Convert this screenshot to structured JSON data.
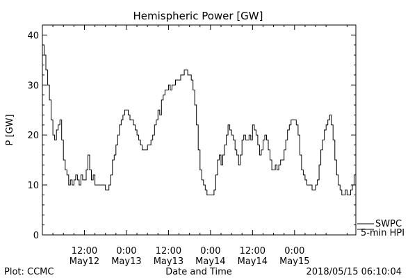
{
  "chart_data": {
    "type": "line",
    "title": "Hemispheric Power [GW]",
    "xlabel": "Date and Time",
    "ylabel": "P [GW]",
    "ylim": [
      0,
      42
    ],
    "xlim": [
      0,
      89.5
    ],
    "x_unit": "hours since 2018-05-11 00:00",
    "yticks": [
      0,
      10,
      20,
      30,
      40
    ],
    "xticks": [
      {
        "x": 12,
        "time": "12:00",
        "date": "May12"
      },
      {
        "x": 24,
        "time": "0:00",
        "date": "May13"
      },
      {
        "x": 36,
        "time": "12:00",
        "date": "May13"
      },
      {
        "x": 48,
        "time": "0:00",
        "date": "May14"
      },
      {
        "x": 60,
        "time": "12:00",
        "date": "May14"
      },
      {
        "x": 72,
        "time": "0:00",
        "date": "May15"
      }
    ],
    "legend": {
      "line1": "SWPC",
      "line2": "5-min HPI",
      "position": "bottom-right"
    },
    "footer_left": "Plot: CCMC",
    "footer_right": "2018/05/15 06:10:04",
    "series": [
      {
        "color": "#000000",
        "points": [
          [
            0.0,
            38
          ],
          [
            0.5,
            36
          ],
          [
            1.0,
            33
          ],
          [
            1.5,
            30
          ],
          [
            2.0,
            27
          ],
          [
            2.5,
            23
          ],
          [
            3.0,
            20
          ],
          [
            3.5,
            19
          ],
          [
            4.0,
            21
          ],
          [
            4.5,
            22
          ],
          [
            5.0,
            23
          ],
          [
            5.5,
            19
          ],
          [
            6.0,
            15
          ],
          [
            6.5,
            13
          ],
          [
            7.0,
            12
          ],
          [
            7.5,
            10
          ],
          [
            8.0,
            11
          ],
          [
            8.5,
            10
          ],
          [
            9.0,
            11
          ],
          [
            9.5,
            12
          ],
          [
            10.0,
            11
          ],
          [
            10.5,
            10
          ],
          [
            11.0,
            12
          ],
          [
            11.5,
            11
          ],
          [
            12.0,
            11
          ],
          [
            12.5,
            13
          ],
          [
            13.0,
            16
          ],
          [
            13.5,
            13
          ],
          [
            14.0,
            11
          ],
          [
            14.5,
            12
          ],
          [
            15.0,
            10
          ],
          [
            15.5,
            10
          ],
          [
            16.0,
            10
          ],
          [
            16.5,
            10
          ],
          [
            17.0,
            10
          ],
          [
            17.5,
            10
          ],
          [
            18.0,
            9
          ],
          [
            18.5,
            9
          ],
          [
            19.0,
            10
          ],
          [
            19.5,
            12
          ],
          [
            20.0,
            15
          ],
          [
            20.5,
            16
          ],
          [
            21.0,
            18
          ],
          [
            21.5,
            20
          ],
          [
            22.0,
            22
          ],
          [
            22.5,
            23
          ],
          [
            23.0,
            24
          ],
          [
            23.5,
            25
          ],
          [
            24.0,
            25
          ],
          [
            24.5,
            24
          ],
          [
            25.0,
            23
          ],
          [
            25.5,
            23
          ],
          [
            26.0,
            22
          ],
          [
            26.5,
            21
          ],
          [
            27.0,
            20
          ],
          [
            27.5,
            19
          ],
          [
            28.0,
            18
          ],
          [
            28.5,
            17
          ],
          [
            29.0,
            17
          ],
          [
            29.5,
            17
          ],
          [
            30.0,
            18
          ],
          [
            30.5,
            18
          ],
          [
            31.0,
            19
          ],
          [
            31.5,
            20
          ],
          [
            32.0,
            22
          ],
          [
            32.5,
            23
          ],
          [
            33.0,
            25
          ],
          [
            33.5,
            24
          ],
          [
            34.0,
            27
          ],
          [
            34.5,
            28
          ],
          [
            35.0,
            29
          ],
          [
            35.5,
            29
          ],
          [
            36.0,
            30
          ],
          [
            36.5,
            29
          ],
          [
            37.0,
            30
          ],
          [
            37.5,
            30
          ],
          [
            38.0,
            31
          ],
          [
            38.5,
            31
          ],
          [
            39.0,
            31
          ],
          [
            39.5,
            32
          ],
          [
            40.0,
            32
          ],
          [
            40.5,
            33
          ],
          [
            41.0,
            33
          ],
          [
            41.5,
            32
          ],
          [
            42.0,
            32
          ],
          [
            42.5,
            31
          ],
          [
            43.0,
            29
          ],
          [
            43.5,
            26
          ],
          [
            44.0,
            22
          ],
          [
            44.5,
            17
          ],
          [
            45.0,
            13
          ],
          [
            45.5,
            11
          ],
          [
            46.0,
            10
          ],
          [
            46.5,
            9
          ],
          [
            47.0,
            8
          ],
          [
            47.5,
            8
          ],
          [
            48.0,
            8
          ],
          [
            48.5,
            8
          ],
          [
            49.0,
            9
          ],
          [
            49.5,
            12
          ],
          [
            50.0,
            15
          ],
          [
            50.5,
            16
          ],
          [
            51.0,
            14
          ],
          [
            51.5,
            16
          ],
          [
            52.0,
            18
          ],
          [
            52.5,
            20
          ],
          [
            53.0,
            22
          ],
          [
            53.5,
            21
          ],
          [
            54.0,
            20
          ],
          [
            54.5,
            19
          ],
          [
            55.0,
            17
          ],
          [
            55.5,
            16
          ],
          [
            56.0,
            14
          ],
          [
            56.5,
            16
          ],
          [
            57.0,
            19
          ],
          [
            57.5,
            20
          ],
          [
            58.0,
            19
          ],
          [
            58.5,
            19
          ],
          [
            59.0,
            20
          ],
          [
            59.5,
            19
          ],
          [
            60.0,
            22
          ],
          [
            60.5,
            21
          ],
          [
            61.0,
            20
          ],
          [
            61.5,
            18
          ],
          [
            62.0,
            16
          ],
          [
            62.5,
            17
          ],
          [
            63.0,
            19
          ],
          [
            63.5,
            20
          ],
          [
            64.0,
            19
          ],
          [
            64.5,
            17
          ],
          [
            65.0,
            15
          ],
          [
            65.5,
            13
          ],
          [
            66.0,
            13
          ],
          [
            66.5,
            14
          ],
          [
            67.0,
            13
          ],
          [
            67.5,
            14
          ],
          [
            68.0,
            15
          ],
          [
            68.5,
            15
          ],
          [
            69.0,
            17
          ],
          [
            69.5,
            19
          ],
          [
            70.0,
            21
          ],
          [
            70.5,
            22
          ],
          [
            71.0,
            23
          ],
          [
            71.5,
            23
          ],
          [
            72.0,
            23
          ],
          [
            72.5,
            22
          ],
          [
            73.0,
            20
          ],
          [
            73.5,
            16
          ],
          [
            74.0,
            13
          ],
          [
            74.5,
            12
          ],
          [
            75.0,
            11
          ],
          [
            75.5,
            10
          ],
          [
            76.0,
            10
          ],
          [
            76.5,
            10
          ],
          [
            77.0,
            9
          ],
          [
            77.5,
            9
          ],
          [
            78.0,
            10
          ],
          [
            78.5,
            11
          ],
          [
            79.0,
            14
          ],
          [
            79.5,
            17
          ],
          [
            80.0,
            19
          ],
          [
            80.5,
            21
          ],
          [
            81.0,
            22
          ],
          [
            81.5,
            23
          ],
          [
            82.0,
            24
          ],
          [
            82.5,
            22
          ],
          [
            83.0,
            19
          ],
          [
            83.5,
            15
          ],
          [
            84.0,
            12
          ],
          [
            84.5,
            10
          ],
          [
            85.0,
            9
          ],
          [
            85.5,
            8
          ],
          [
            86.0,
            8
          ],
          [
            86.5,
            9
          ],
          [
            87.0,
            8
          ],
          [
            87.5,
            8
          ],
          [
            88.0,
            9
          ],
          [
            88.5,
            10
          ],
          [
            89.0,
            12
          ]
        ]
      }
    ]
  }
}
